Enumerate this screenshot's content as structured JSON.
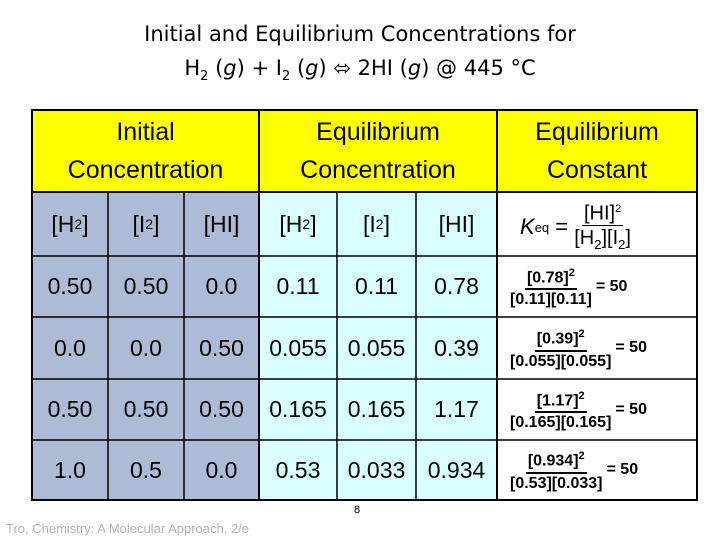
{
  "title": {
    "line1": "Initial and Equilibrium Concentrations for",
    "line2_parts": [
      "H",
      "2",
      " (",
      "g",
      ") + I",
      "2",
      " (",
      "g",
      ") ⬄ 2HI (",
      "g",
      ") @ 445 °C"
    ]
  },
  "headers": {
    "initial_line1": "Initial",
    "initial_line2": "Concentration",
    "equilibrium_line1": "Equilibrium",
    "equilibrium_line2": "Concentration",
    "constant_line1": "Equilibrium",
    "constant_line2": "Constant"
  },
  "species": {
    "h2": "[H",
    "h2_sub": "2",
    "h2_close": "]",
    "i2": "[I",
    "i2_sub": "2",
    "i2_close": "]",
    "hi": "[HI]"
  },
  "keq_expression": {
    "k": "K",
    "k_sub": "eq",
    "equals": " = ",
    "numerator": "[HI]",
    "numerator_sup": "2",
    "denominator": "[H",
    "den_sub1": "2",
    "den_mid": "][I",
    "den_sub2": "2",
    "den_close": "]"
  },
  "rows": [
    {
      "init_h2": "0.50",
      "init_i2": "0.50",
      "init_hi": "0.0",
      "eq_h2": "0.11",
      "eq_i2": "0.11",
      "eq_hi": "0.78",
      "k_num": "[0.78]",
      "k_sup": "2",
      "k_den": "[0.11][0.11]",
      "k_val": "= 50"
    },
    {
      "init_h2": "0.0",
      "init_i2": "0.0",
      "init_hi": "0.50",
      "eq_h2": "0.055",
      "eq_i2": "0.055",
      "eq_hi": "0.39",
      "k_num": "[0.39]",
      "k_sup": "2",
      "k_den": "[0.055][0.055]",
      "k_val": "= 50"
    },
    {
      "init_h2": "0.50",
      "init_i2": "0.50",
      "init_hi": "0.50",
      "eq_h2": "0.165",
      "eq_i2": "0.165",
      "eq_hi": "1.17",
      "k_num": "[1.17]",
      "k_sup": "2",
      "k_den": "[0.165][0.165]",
      "k_val": "= 50"
    },
    {
      "init_h2": "1.0",
      "init_i2": "0.5",
      "init_hi": "0.0",
      "eq_h2": "0.53",
      "eq_i2": "0.033",
      "eq_hi": "0.934",
      "k_num": "[0.934]",
      "k_sup": "2",
      "k_den": "[0.53][0.033]",
      "k_val": "= 50"
    }
  ],
  "footer": "Tro, Chemistry: A Molecular Approach, 2/e",
  "page_number": "8",
  "colors": {
    "header_yellow": "#ffff00",
    "initial_blue": "#aebbd6",
    "equilibrium_cyan": "#d9ffff",
    "grid": "#000000"
  }
}
